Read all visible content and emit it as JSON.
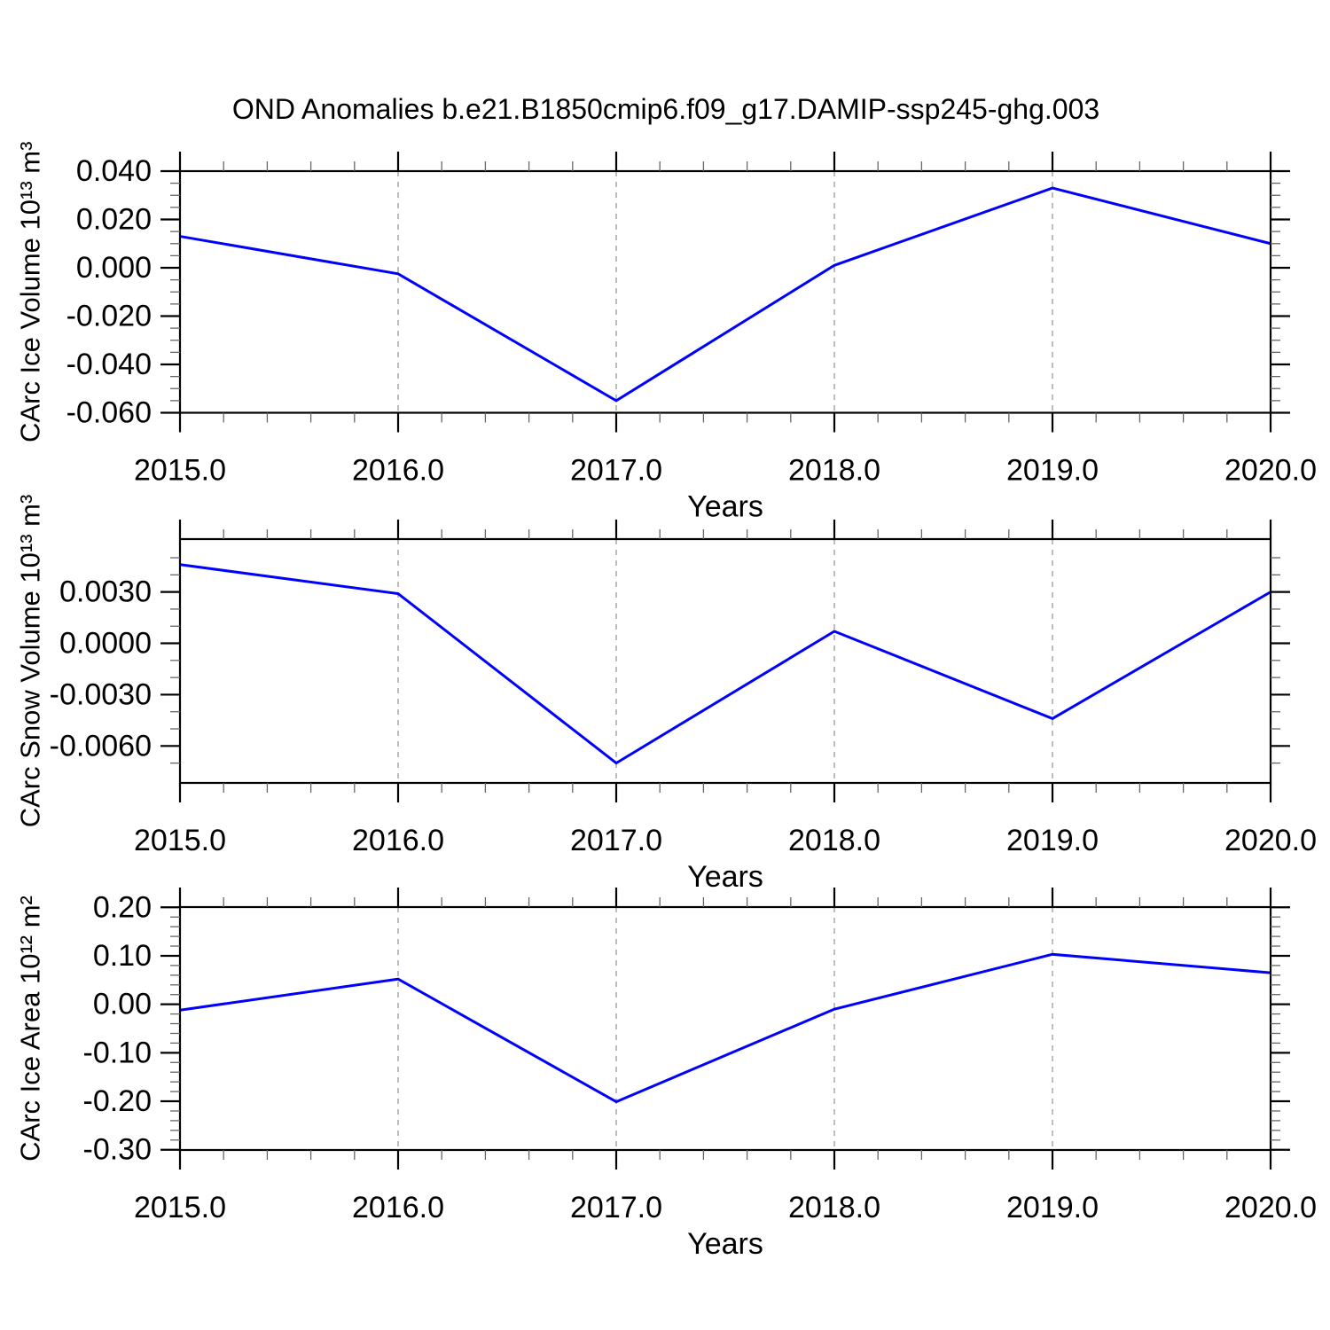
{
  "title": "OND Anomalies b.e21.B1850cmip6.f09_g17.DAMIP-ssp245-ghg.003",
  "colors": {
    "line": "#0000ff",
    "axis": "#000000",
    "minor_tick": "#666666",
    "gridline": "#999999",
    "text": "#000000",
    "background": "#ffffff"
  },
  "x_axis": {
    "label": "Years",
    "tick_values": [
      2015,
      2016,
      2017,
      2018,
      2019,
      2020
    ],
    "tick_labels": [
      "2015.0",
      "2016.0",
      "2017.0",
      "2018.0",
      "2019.0",
      "2020.0"
    ],
    "minor_step": 0.2,
    "xlim": [
      2015,
      2020
    ],
    "dashed_gridlines_at": [
      2016,
      2017,
      2018,
      2019
    ]
  },
  "chart_data": [
    {
      "type": "line",
      "name": "ice-volume",
      "ylabel": "CArc Ice Volume 10¹³ m³",
      "xlabel": "Years",
      "x": [
        2015,
        2016,
        2017,
        2018,
        2019,
        2020
      ],
      "values": [
        0.013,
        -0.0025,
        -0.055,
        0.001,
        0.033,
        0.01
      ],
      "ylim": [
        -0.06,
        0.04
      ],
      "ytick_values": [
        0.04,
        0.02,
        0.0,
        -0.02,
        -0.04,
        -0.06
      ],
      "ytick_labels": [
        "0.040",
        "0.020",
        "0.000",
        "-0.020",
        "-0.040",
        "-0.060"
      ],
      "yminor_step": 0.005,
      "grid": "vertical-dashed",
      "legend": "none"
    },
    {
      "type": "line",
      "name": "snow-volume",
      "ylabel": "CArc Snow Volume 10¹³ m³",
      "xlabel": "Years",
      "x": [
        2015,
        2016,
        2017,
        2018,
        2019,
        2020
      ],
      "values": [
        0.0046,
        0.0029,
        -0.007,
        0.0007,
        -0.0044,
        0.003
      ],
      "ylim": [
        -0.00816,
        0.00609
      ],
      "ytick_values": [
        0.003,
        0.0,
        -0.003,
        -0.006
      ],
      "ytick_labels": [
        "0.0030",
        "0.0000",
        "-0.0030",
        "-0.0060"
      ],
      "yminor_step": 0.001,
      "grid": "vertical-dashed",
      "legend": "none"
    },
    {
      "type": "line",
      "name": "ice-area",
      "ylabel": "CArc Ice Area 10¹² m²",
      "xlabel": "Years",
      "x": [
        2015,
        2016,
        2017,
        2018,
        2019,
        2020
      ],
      "values": [
        -0.012,
        0.052,
        -0.201,
        -0.01,
        0.103,
        0.065
      ],
      "ylim": [
        -0.3005,
        0.2005
      ],
      "ytick_values": [
        0.2,
        0.1,
        0.0,
        -0.1,
        -0.2,
        -0.3
      ],
      "ytick_labels": [
        "0.20",
        "0.10",
        "0.00",
        "-0.10",
        "-0.20",
        "-0.30"
      ],
      "yminor_step": 0.02,
      "grid": "vertical-dashed",
      "legend": "none"
    }
  ]
}
